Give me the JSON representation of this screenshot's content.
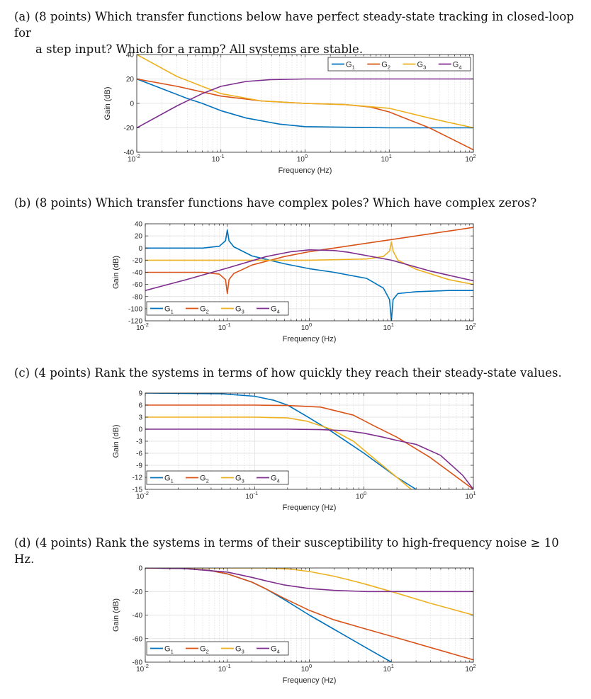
{
  "questions": [
    {
      "label": "(a)",
      "line1": "(8 points) Which transfer functions below have perfect steady-state tracking in closed-loop for",
      "line2": "a step input? Which for a ramp? All systems are stable."
    },
    {
      "label": "(b)",
      "line1": "(8 points) Which transfer functions have complex poles? Which have complex zeros?"
    },
    {
      "label": "(c)",
      "line1": "(4 points) Rank the systems in terms of how quickly they reach their steady-state values."
    },
    {
      "label": "(d)",
      "line1": "(4 points) Rank the systems in terms of their susceptibility to high-frequency noise ≥ 10 Hz."
    }
  ],
  "colors": {
    "G1": "#0072bd",
    "G2": "#d95319",
    "G3": "#edb120",
    "G4": "#7e2f8e",
    "axis": "#262626",
    "grid": "#dcdcdc"
  },
  "chart_data": [
    {
      "id": "a",
      "type": "line",
      "xscale": "log",
      "title": "",
      "xlabel": "Frequency (Hz)",
      "ylabel": "Gain (dB)",
      "xlim": [
        0.01,
        100
      ],
      "ylim": [
        -40,
        40
      ],
      "yticks": [
        40,
        20,
        0,
        -20,
        -40
      ],
      "xticks": [
        {
          "base": "10",
          "exp": "-2"
        },
        {
          "base": "10",
          "exp": "-1"
        },
        {
          "base": "10",
          "exp": "0"
        },
        {
          "base": "10",
          "exp": "1"
        },
        {
          "base": "10",
          "exp": "2"
        }
      ],
      "legend": [
        "G",
        "G",
        "G",
        "G"
      ],
      "legend_subs": [
        "1",
        "2",
        "3",
        "4"
      ],
      "legend_loc": "top-right",
      "series": [
        {
          "name": "G1",
          "x": [
            0.01,
            0.02,
            0.04,
            0.06,
            0.1,
            0.2,
            0.5,
            1,
            10,
            100
          ],
          "y": [
            20,
            12,
            4,
            0,
            -6,
            -12,
            -17,
            -19,
            -20,
            -20
          ]
        },
        {
          "name": "G2",
          "x": [
            0.01,
            0.03,
            0.1,
            0.3,
            1,
            3,
            6,
            10,
            30,
            100
          ],
          "y": [
            20,
            14,
            6,
            2,
            0,
            -1,
            -3,
            -7,
            -20,
            -38
          ]
        },
        {
          "name": "G3",
          "x": [
            0.01,
            0.03,
            0.1,
            0.3,
            1,
            3,
            10,
            30,
            100
          ],
          "y": [
            40,
            22,
            8,
            2,
            0,
            -1,
            -4,
            -12,
            -20
          ]
        },
        {
          "name": "G4",
          "x": [
            0.01,
            0.03,
            0.06,
            0.1,
            0.2,
            0.4,
            1,
            10,
            100
          ],
          "y": [
            -20,
            -2,
            8,
            14,
            18,
            19.5,
            20,
            20,
            20
          ]
        }
      ]
    },
    {
      "id": "b",
      "type": "line",
      "xscale": "log",
      "title": "",
      "xlabel": "Frequency (Hz)",
      "ylabel": "Gain (dB)",
      "xlim": [
        0.01,
        100
      ],
      "ylim": [
        -120,
        40
      ],
      "yticks": [
        40,
        20,
        0,
        -20,
        -40,
        -60,
        -80,
        -100,
        -120
      ],
      "xticks": [
        {
          "base": "10",
          "exp": "-2"
        },
        {
          "base": "10",
          "exp": "-1"
        },
        {
          "base": "10",
          "exp": "0"
        },
        {
          "base": "10",
          "exp": "1"
        },
        {
          "base": "10",
          "exp": "2"
        }
      ],
      "legend": [
        "G",
        "G",
        "G",
        "G"
      ],
      "legend_subs": [
        "1",
        "2",
        "3",
        "4"
      ],
      "legend_loc": "bottom-left",
      "series": [
        {
          "name": "G1",
          "x": [
            0.01,
            0.05,
            0.08,
            0.095,
            0.1,
            0.105,
            0.12,
            0.2,
            0.5,
            1,
            2,
            5,
            8,
            9.5,
            10,
            10.5,
            12,
            20,
            50,
            100
          ],
          "y": [
            0,
            0,
            3,
            12,
            30,
            12,
            2,
            -13,
            -26,
            -34,
            -40,
            -50,
            -66,
            -85,
            -120,
            -85,
            -75,
            -72,
            -70,
            -70
          ]
        },
        {
          "name": "G2",
          "x": [
            0.01,
            0.05,
            0.08,
            0.095,
            0.1,
            0.105,
            0.12,
            0.2,
            0.5,
            1,
            10,
            100
          ],
          "y": [
            -40,
            -40,
            -43,
            -52,
            -75,
            -52,
            -42,
            -28,
            -14,
            -6,
            14,
            34
          ]
        },
        {
          "name": "G3",
          "x": [
            0.01,
            1,
            5,
            8,
            9.5,
            10,
            10.5,
            12,
            20,
            50,
            100
          ],
          "y": [
            -20,
            -20,
            -18,
            -14,
            -5,
            10,
            -5,
            -20,
            -35,
            -52,
            -60
          ]
        },
        {
          "name": "G4",
          "x": [
            0.01,
            0.03,
            0.1,
            0.3,
            0.6,
            1,
            2,
            3,
            10,
            30,
            100
          ],
          "y": [
            -70,
            -53,
            -33,
            -14,
            -6,
            -3,
            -4,
            -7,
            -20,
            -38,
            -54
          ]
        }
      ]
    },
    {
      "id": "c",
      "type": "line",
      "xscale": "log",
      "title": "",
      "xlabel": "Frequency (Hz)",
      "ylabel": "Gain (dB)",
      "xlim": [
        0.01,
        10
      ],
      "ylim": [
        -15,
        9
      ],
      "yticks": [
        9,
        6,
        3,
        0,
        -3,
        -6,
        -9,
        -12,
        -15
      ],
      "xticks": [
        {
          "base": "10",
          "exp": "-2"
        },
        {
          "base": "10",
          "exp": "-1"
        },
        {
          "base": "10",
          "exp": "0"
        },
        {
          "base": "10",
          "exp": "1"
        }
      ],
      "legend": [
        "G",
        "G",
        "G",
        "G"
      ],
      "legend_subs": [
        "1",
        "2",
        "3",
        "4"
      ],
      "legend_loc": "bottom-left",
      "series": [
        {
          "name": "G1",
          "x": [
            0.01,
            0.05,
            0.1,
            0.15,
            0.2,
            0.3,
            0.5,
            1,
            2,
            3
          ],
          "y": [
            9,
            8.8,
            8.2,
            7.2,
            6,
            3.2,
            -0.5,
            -6,
            -12,
            -15
          ]
        },
        {
          "name": "G2",
          "x": [
            0.01,
            0.1,
            0.2,
            0.4,
            0.8,
            1.2,
            2,
            4,
            10
          ],
          "y": [
            6,
            6,
            5.9,
            5.5,
            3.5,
            1,
            -2,
            -7,
            -15
          ]
        },
        {
          "name": "G3",
          "x": [
            0.01,
            0.1,
            0.2,
            0.3,
            0.5,
            0.8,
            1.2,
            2,
            2.7
          ],
          "y": [
            3,
            3,
            2.8,
            2,
            0,
            -3,
            -7,
            -12,
            -15
          ]
        },
        {
          "name": "G4",
          "x": [
            0.01,
            0.2,
            0.4,
            0.7,
            1,
            1.5,
            2,
            3,
            5,
            8,
            10
          ],
          "y": [
            0,
            0,
            -0.1,
            -0.4,
            -1,
            -2,
            -2.8,
            -3.8,
            -6.5,
            -11.5,
            -15
          ]
        }
      ]
    },
    {
      "id": "d",
      "type": "line",
      "xscale": "log",
      "title": "",
      "xlabel": "Frequency (Hz)",
      "ylabel": "Gain (dB)",
      "xlim": [
        0.01,
        100
      ],
      "ylim": [
        -80,
        0
      ],
      "yticks": [
        0,
        -20,
        -40,
        -60,
        -80
      ],
      "xticks": [
        {
          "base": "10",
          "exp": "-2"
        },
        {
          "base": "10",
          "exp": "-1"
        },
        {
          "base": "10",
          "exp": "0"
        },
        {
          "base": "10",
          "exp": "1"
        },
        {
          "base": "10",
          "exp": "2"
        }
      ],
      "legend": [
        "G",
        "G",
        "G",
        "G"
      ],
      "legend_subs": [
        "1",
        "2",
        "3",
        "4"
      ],
      "legend_loc": "bottom-left",
      "series": [
        {
          "name": "G1",
          "x": [
            0.01,
            0.03,
            0.06,
            0.1,
            0.2,
            0.3,
            0.5,
            1,
            2,
            5,
            10
          ],
          "y": [
            0,
            -0.5,
            -2,
            -5,
            -12,
            -18,
            -27,
            -40,
            -52,
            -68,
            -80
          ]
        },
        {
          "name": "G2",
          "x": [
            0.01,
            0.03,
            0.06,
            0.1,
            0.2,
            0.3,
            0.5,
            1,
            2,
            5,
            10,
            100
          ],
          "y": [
            0,
            -0.5,
            -2,
            -5,
            -12,
            -18,
            -26,
            -36,
            -44,
            -52,
            -58,
            -78
          ]
        },
        {
          "name": "G3",
          "x": [
            0.01,
            0.3,
            0.6,
            1,
            2,
            3,
            5,
            10,
            30,
            100
          ],
          "y": [
            0,
            0,
            -1,
            -3,
            -7,
            -10,
            -14,
            -20,
            -30,
            -40
          ]
        },
        {
          "name": "G4",
          "x": [
            0.01,
            0.03,
            0.1,
            0.2,
            0.3,
            0.5,
            1,
            2,
            5,
            10,
            100
          ],
          "y": [
            0,
            -0.5,
            -3.5,
            -8,
            -11,
            -14.5,
            -17.5,
            -19,
            -20,
            -20,
            -20
          ]
        }
      ]
    }
  ]
}
